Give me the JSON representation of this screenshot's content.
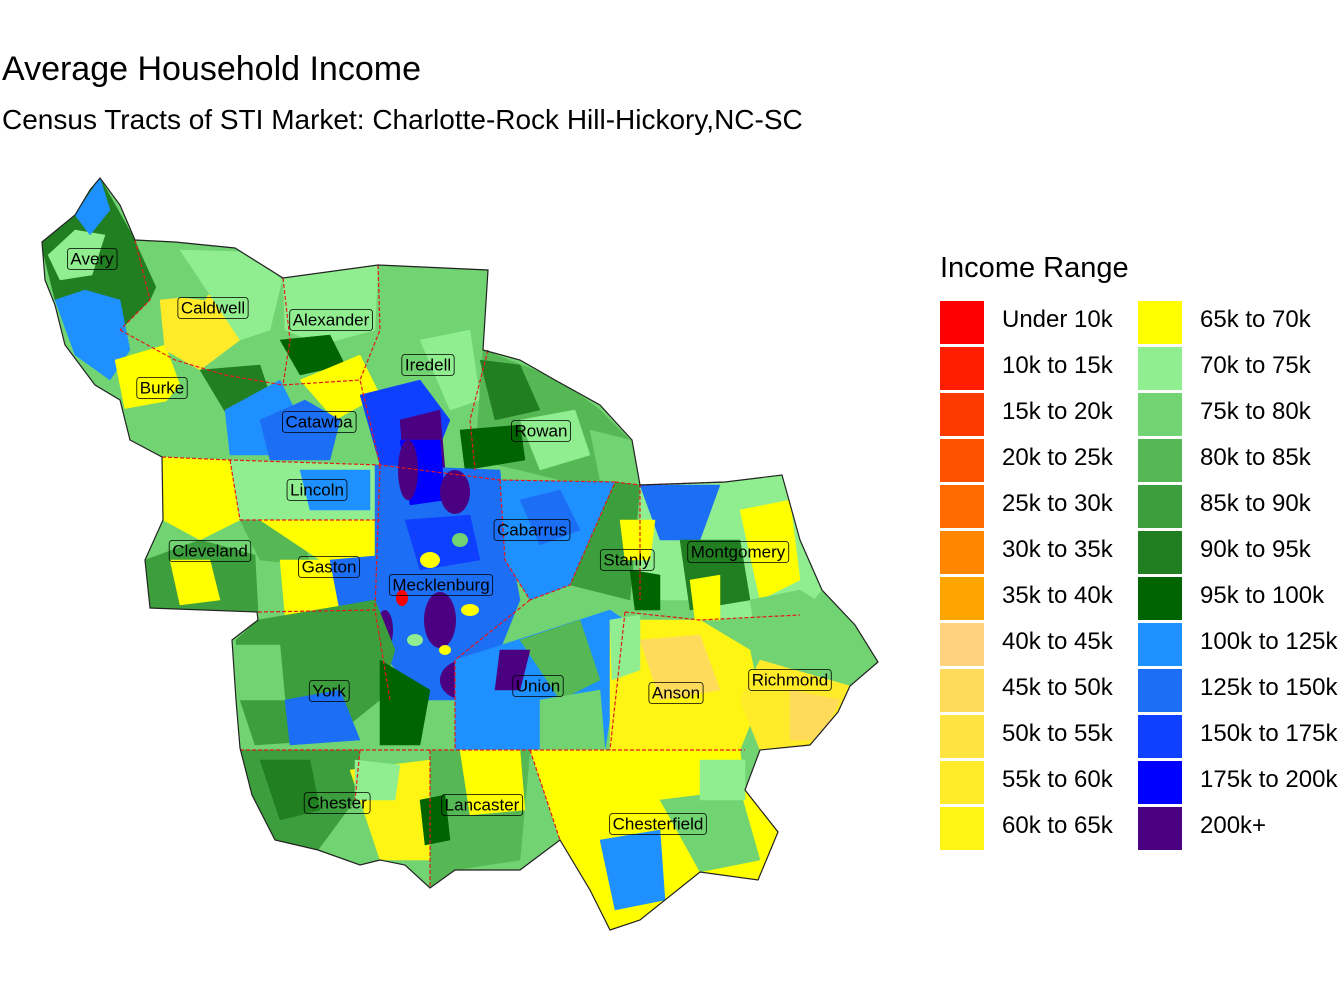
{
  "title": "Average Household Income",
  "subtitle": "Census Tracts of STI Market: Charlotte-Rock Hill-Hickory,NC-SC",
  "legend": {
    "title": "Income Range",
    "items": [
      {
        "label": "Under 10k",
        "color": "#ff0000"
      },
      {
        "label": "10k to 15k",
        "color": "#ff1e00"
      },
      {
        "label": "15k to 20k",
        "color": "#ff3a00"
      },
      {
        "label": "20k to 25k",
        "color": "#ff5200"
      },
      {
        "label": "25k to 30k",
        "color": "#ff6a00"
      },
      {
        "label": "30k to 35k",
        "color": "#ff8600"
      },
      {
        "label": "35k to 40k",
        "color": "#ffa500"
      },
      {
        "label": "40k to 45k",
        "color": "#ffd27f"
      },
      {
        "label": "45k to 50k",
        "color": "#ffdb5c"
      },
      {
        "label": "50k to 55k",
        "color": "#ffe340"
      },
      {
        "label": "55k to 60k",
        "color": "#ffeb2a"
      },
      {
        "label": "60k to 65k",
        "color": "#fff514"
      },
      {
        "label": "65k to 70k",
        "color": "#ffff00"
      },
      {
        "label": "70k to 75k",
        "color": "#90ee90"
      },
      {
        "label": "75k to 80k",
        "color": "#71d371"
      },
      {
        "label": "80k to 85k",
        "color": "#55b855"
      },
      {
        "label": "85k to 90k",
        "color": "#3c9e3c"
      },
      {
        "label": "90k to 95k",
        "color": "#217e21"
      },
      {
        "label": "95k to 100k",
        "color": "#006400"
      },
      {
        "label": "100k to 125k",
        "color": "#1e90ff"
      },
      {
        "label": "125k to 150k",
        "color": "#1c6ef5"
      },
      {
        "label": "150k to 175k",
        "color": "#1040ff"
      },
      {
        "label": "175k to 200k",
        "color": "#0000ff"
      },
      {
        "label": "200k+",
        "color": "#4b0082"
      }
    ]
  },
  "counties": [
    "Avery",
    "Caldwell",
    "Alexander",
    "Iredell",
    "Burke",
    "Catawba",
    "Rowan",
    "Lincoln",
    "Cabarrus",
    "Cleveland",
    "Gaston",
    "Mecklenburg",
    "Stanly",
    "Montgomery",
    "York",
    "Union",
    "Anson",
    "Richmond",
    "Chester",
    "Lancaster",
    "Chesterfield"
  ],
  "boundary_color": "#e31a1c"
}
